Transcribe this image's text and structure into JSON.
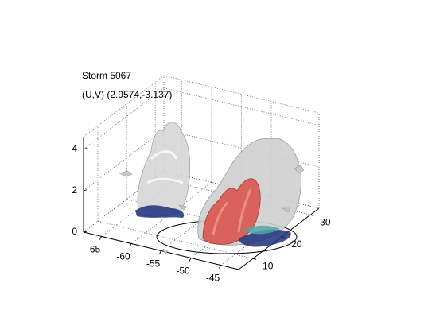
{
  "chart_data": {
    "type": "isosurface3d",
    "title": "Storm 5067",
    "subtitle": "(U,V) (2.9574,-3.137)",
    "xlim": [
      -68,
      -42
    ],
    "xticks": [
      -65,
      -60,
      -55,
      -50,
      -45
    ],
    "ylim": [
      5,
      33
    ],
    "yticks": [
      10,
      20,
      30
    ],
    "zlim": [
      0,
      4.6
    ],
    "zticks": [
      0,
      2,
      4
    ],
    "grid": true
  }
}
